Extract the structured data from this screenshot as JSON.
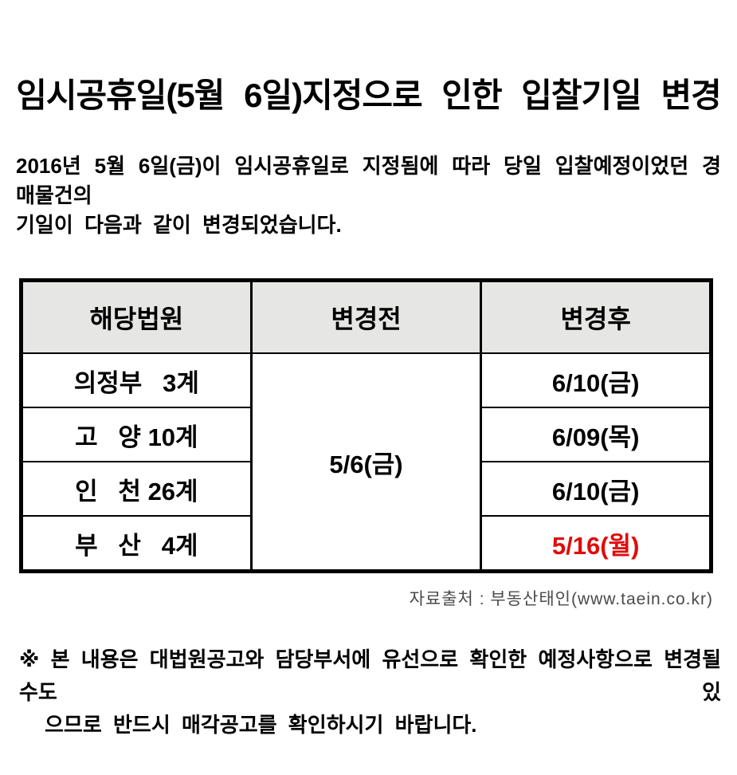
{
  "title": "임시공휴일(5월 6일)지정으로 인한 입찰기일 변경",
  "intro": {
    "line1": "2016년 5월 6일(금)이 임시공휴일로 지정됨에 따라 당일 입찰예정이었던 경매물건의",
    "line2": "기일이 다음과 같이 변경되었습니다."
  },
  "table": {
    "headers": {
      "court": "해당법원",
      "before": "변경전",
      "after": "변경후"
    },
    "before_value": "5/6(금)",
    "rows": [
      {
        "court": "의정부   3계",
        "after": "6/10(금)"
      },
      {
        "court": "고   양 10계",
        "after": "6/09(목)"
      },
      {
        "court": "인   천 26계",
        "after": "6/10(금)"
      },
      {
        "court": "부   산   4계",
        "after": "5/16(월)"
      }
    ]
  },
  "source": "자료출처 : 부동산태인(www.taein.co.kr)",
  "note": {
    "line1": "※ 본 내용은 대법원공고와 담당부서에 유선으로 확인한 예정사항으로 변경될 수도 있",
    "line2": "으므로 반드시 매각공고를 확인하시기 바랍니다."
  },
  "colors": {
    "header_bg": "#e6e6e4",
    "highlight_red": "#e00b0b",
    "source_gray": "#4a4a4a"
  }
}
